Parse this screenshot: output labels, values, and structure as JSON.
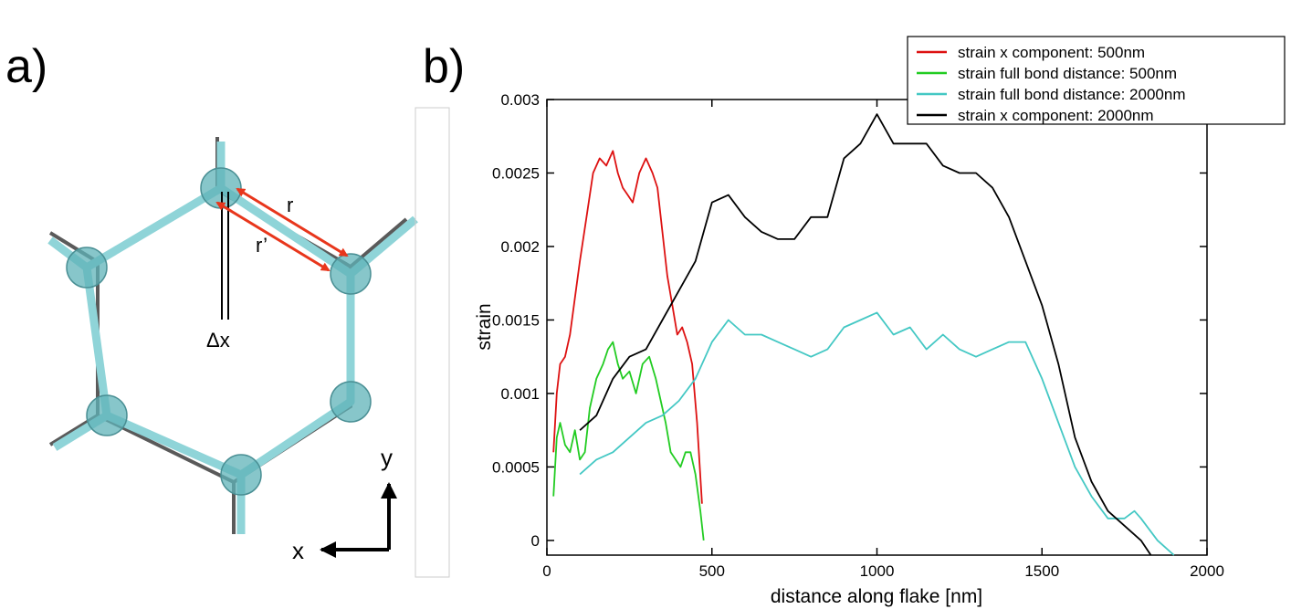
{
  "panels": {
    "a_label": "a)",
    "b_label": "b)"
  },
  "diagram": {
    "bond_r_label": "r",
    "bond_r_prime_label": "r’",
    "delta_label": "Δx",
    "axis_y_label": "y",
    "axis_x_label": "x",
    "colors": {
      "bond": "#8fd4d8",
      "bond_edge": "#4a8f94",
      "atom": "#5fb3b8",
      "arrow": "#e8361c",
      "ref_line": "#666666"
    }
  },
  "chart_data": {
    "type": "line",
    "xlabel": "distance along flake [nm]",
    "ylabel": "strain",
    "xlim": [
      0,
      2000
    ],
    "ylim": [
      -0.0001,
      0.003
    ],
    "xticks": [
      0,
      500,
      1000,
      1500,
      2000
    ],
    "xtick_labels": [
      "0",
      "500",
      "1000",
      "1500",
      "2000"
    ],
    "yticks": [
      0,
      0.0005,
      0.001,
      0.0015,
      0.002,
      0.0025,
      0.003
    ],
    "ytick_labels": [
      "0",
      "0.0005",
      "0.001",
      "0.0015",
      "0.002",
      "0.0025",
      "0.003"
    ],
    "legend_position": "top-right",
    "series": [
      {
        "name": "strain x component: 500nm",
        "color": "#dd1111",
        "x": [
          20,
          30,
          40,
          55,
          70,
          85,
          100,
          120,
          140,
          160,
          180,
          200,
          215,
          230,
          245,
          260,
          280,
          300,
          320,
          335,
          350,
          365,
          380,
          395,
          410,
          425,
          440,
          455,
          470
        ],
        "y": [
          0.0006,
          0.001,
          0.0012,
          0.00125,
          0.0014,
          0.00165,
          0.0019,
          0.0022,
          0.0025,
          0.0026,
          0.00255,
          0.00265,
          0.0025,
          0.0024,
          0.00235,
          0.0023,
          0.0025,
          0.0026,
          0.0025,
          0.0024,
          0.0021,
          0.0018,
          0.0016,
          0.0014,
          0.00145,
          0.00135,
          0.0012,
          0.0008,
          0.00025
        ]
      },
      {
        "name": "strain full bond distance: 500nm",
        "color": "#22cc22",
        "x": [
          20,
          30,
          40,
          55,
          70,
          85,
          100,
          115,
          130,
          150,
          170,
          185,
          200,
          215,
          230,
          250,
          270,
          290,
          310,
          330,
          345,
          360,
          375,
          390,
          405,
          420,
          435,
          450,
          465,
          475
        ],
        "y": [
          0.0003,
          0.0007,
          0.0008,
          0.00065,
          0.0006,
          0.00075,
          0.00055,
          0.0006,
          0.0009,
          0.0011,
          0.0012,
          0.0013,
          0.00135,
          0.0012,
          0.0011,
          0.00115,
          0.001,
          0.0012,
          0.00125,
          0.0011,
          0.00095,
          0.0008,
          0.0006,
          0.00055,
          0.0005,
          0.0006,
          0.0006,
          0.00045,
          0.0002,
          0.0
        ]
      },
      {
        "name": "strain full bond distance: 2000nm",
        "color": "#44c8c4",
        "x": [
          100,
          150,
          200,
          250,
          300,
          350,
          400,
          450,
          500,
          550,
          600,
          650,
          700,
          750,
          800,
          850,
          900,
          950,
          1000,
          1050,
          1100,
          1150,
          1200,
          1250,
          1300,
          1350,
          1400,
          1450,
          1500,
          1550,
          1600,
          1650,
          1700,
          1750,
          1780,
          1800,
          1850,
          1900
        ],
        "y": [
          0.00045,
          0.00055,
          0.0006,
          0.0007,
          0.0008,
          0.00085,
          0.00095,
          0.0011,
          0.00135,
          0.0015,
          0.0014,
          0.0014,
          0.00135,
          0.0013,
          0.00125,
          0.0013,
          0.00145,
          0.0015,
          0.00155,
          0.0014,
          0.00145,
          0.0013,
          0.0014,
          0.0013,
          0.00125,
          0.0013,
          0.00135,
          0.00135,
          0.0011,
          0.0008,
          0.0005,
          0.0003,
          0.00015,
          0.00015,
          0.0002,
          0.00015,
          0.0,
          -0.0001
        ]
      },
      {
        "name": "strain x component: 2000nm",
        "color": "#000000",
        "x": [
          100,
          150,
          200,
          250,
          300,
          350,
          400,
          450,
          500,
          550,
          600,
          650,
          700,
          750,
          800,
          850,
          900,
          950,
          1000,
          1050,
          1100,
          1150,
          1200,
          1250,
          1300,
          1350,
          1400,
          1450,
          1500,
          1550,
          1600,
          1650,
          1700,
          1750,
          1800,
          1830
        ],
        "y": [
          0.00075,
          0.00085,
          0.0011,
          0.00125,
          0.0013,
          0.0015,
          0.0017,
          0.0019,
          0.0023,
          0.00235,
          0.0022,
          0.0021,
          0.00205,
          0.00205,
          0.0022,
          0.0022,
          0.0026,
          0.0027,
          0.0029,
          0.0027,
          0.0027,
          0.0027,
          0.00255,
          0.0025,
          0.0025,
          0.0024,
          0.0022,
          0.0019,
          0.0016,
          0.0012,
          0.0007,
          0.0004,
          0.0002,
          0.0001,
          0.0,
          -0.0001
        ]
      }
    ]
  }
}
